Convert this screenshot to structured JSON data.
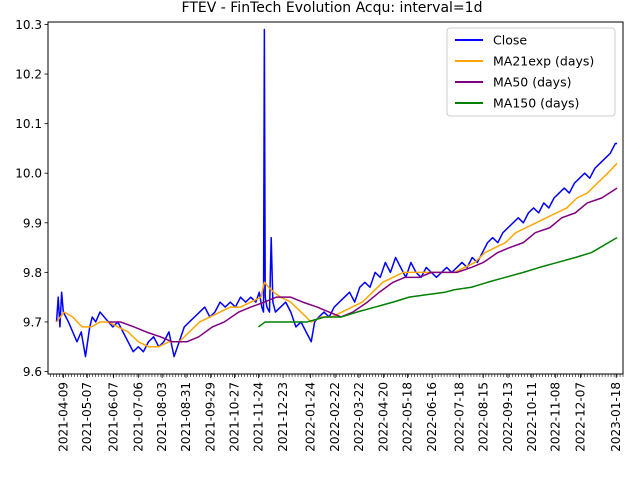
{
  "chart_data": {
    "type": "line",
    "title": "FTEV - FinTech Evolution Acqu: interval=1d",
    "xlabel": "",
    "ylabel": "",
    "x_range": [
      "2021-03-22",
      "2023-01-26"
    ],
    "ylim": [
      9.595,
      10.305
    ],
    "y_ticks": [
      9.6,
      9.7,
      9.8,
      9.9,
      10.0,
      10.1,
      10.2,
      10.3
    ],
    "y_tick_labels": [
      "9.6",
      "9.7",
      "9.8",
      "9.9",
      "10.0",
      "10.1",
      "10.2",
      "10.3"
    ],
    "x_ticks": [
      "2021-04-09",
      "2021-05-07",
      "2021-06-07",
      "2021-07-06",
      "2021-08-03",
      "2021-08-31",
      "2021-09-29",
      "2021-10-27",
      "2021-11-24",
      "2021-12-23",
      "2022-01-24",
      "2022-02-22",
      "2022-03-22",
      "2022-04-20",
      "2022-05-18",
      "2022-06-16",
      "2022-07-18",
      "2022-08-15",
      "2022-09-13",
      "2022-10-11",
      "2022-11-08",
      "2022-12-07",
      "2023-01-18"
    ],
    "x_tick_labels": [
      "2021-04-09",
      "2021-05-07",
      "2021-06-07",
      "2021-07-06",
      "2021-08-03",
      "2021-08-31",
      "2021-09-29",
      "2021-10-27",
      "2021-11-24",
      "2021-12-23",
      "2022-01-24",
      "2022-02-22",
      "2022-03-22",
      "2022-04-20",
      "2022-05-18",
      "2022-06-16",
      "2022-07-18",
      "2022-08-15",
      "2022-09-13",
      "2022-10-11",
      "2022-11-08",
      "2022-12-07",
      "2023-01-18"
    ],
    "grid": false,
    "legend": "top-right",
    "series": [
      {
        "name": "Close",
        "color": "#0000ff",
        "x": [
          "2021-04-01",
          "2021-04-03",
          "2021-04-05",
          "2021-04-07",
          "2021-04-09",
          "2021-04-12",
          "2021-04-15",
          "2021-04-20",
          "2021-04-25",
          "2021-04-30",
          "2021-05-05",
          "2021-05-10",
          "2021-05-13",
          "2021-05-17",
          "2021-05-22",
          "2021-05-27",
          "2021-06-01",
          "2021-06-06",
          "2021-06-12",
          "2021-06-18",
          "2021-06-24",
          "2021-06-30",
          "2021-07-06",
          "2021-07-12",
          "2021-07-18",
          "2021-07-24",
          "2021-07-30",
          "2021-08-05",
          "2021-08-11",
          "2021-08-17",
          "2021-08-23",
          "2021-08-29",
          "2021-09-04",
          "2021-09-10",
          "2021-09-16",
          "2021-09-22",
          "2021-09-28",
          "2021-10-04",
          "2021-10-10",
          "2021-10-16",
          "2021-10-22",
          "2021-10-28",
          "2021-11-03",
          "2021-11-09",
          "2021-11-15",
          "2021-11-21",
          "2021-11-25",
          "2021-11-28",
          "2021-11-30",
          "2021-12-01",
          "2021-12-02",
          "2021-12-04",
          "2021-12-07",
          "2021-12-09",
          "2021-12-11",
          "2021-12-14",
          "2021-12-20",
          "2021-12-26",
          "2022-01-01",
          "2022-01-07",
          "2022-01-13",
          "2022-01-19",
          "2022-01-25",
          "2022-01-29",
          "2022-02-03",
          "2022-02-09",
          "2022-02-15",
          "2022-02-21",
          "2022-02-27",
          "2022-03-05",
          "2022-03-11",
          "2022-03-17",
          "2022-03-23",
          "2022-03-29",
          "2022-04-04",
          "2022-04-10",
          "2022-04-16",
          "2022-04-22",
          "2022-04-28",
          "2022-05-04",
          "2022-05-10",
          "2022-05-16",
          "2022-05-22",
          "2022-05-28",
          "2022-06-03",
          "2022-06-09",
          "2022-06-15",
          "2022-06-21",
          "2022-06-27",
          "2022-07-03",
          "2022-07-09",
          "2022-07-15",
          "2022-07-21",
          "2022-07-27",
          "2022-08-02",
          "2022-08-08",
          "2022-08-14",
          "2022-08-20",
          "2022-08-26",
          "2022-09-01",
          "2022-09-07",
          "2022-09-13",
          "2022-09-19",
          "2022-09-25",
          "2022-10-01",
          "2022-10-07",
          "2022-10-13",
          "2022-10-19",
          "2022-10-25",
          "2022-10-31",
          "2022-11-06",
          "2022-11-12",
          "2022-11-18",
          "2022-11-24",
          "2022-11-30",
          "2022-12-06",
          "2022-12-12",
          "2022-12-18",
          "2022-12-24",
          "2022-12-30",
          "2023-01-05",
          "2023-01-11",
          "2023-01-17",
          "2023-01-19"
        ],
        "values": [
          9.7,
          9.75,
          9.69,
          9.76,
          9.72,
          9.71,
          9.7,
          9.68,
          9.66,
          9.68,
          9.63,
          9.69,
          9.71,
          9.7,
          9.72,
          9.71,
          9.7,
          9.69,
          9.7,
          9.68,
          9.66,
          9.64,
          9.65,
          9.64,
          9.66,
          9.67,
          9.65,
          9.66,
          9.68,
          9.63,
          9.66,
          9.69,
          9.7,
          9.71,
          9.72,
          9.73,
          9.71,
          9.72,
          9.74,
          9.73,
          9.74,
          9.73,
          9.75,
          9.74,
          9.75,
          9.74,
          9.76,
          9.73,
          9.72,
          10.29,
          9.75,
          9.73,
          9.72,
          9.87,
          9.74,
          9.72,
          9.73,
          9.74,
          9.72,
          9.69,
          9.7,
          9.68,
          9.66,
          9.7,
          9.71,
          9.72,
          9.71,
          9.73,
          9.74,
          9.75,
          9.76,
          9.74,
          9.77,
          9.78,
          9.77,
          9.8,
          9.79,
          9.82,
          9.8,
          9.83,
          9.81,
          9.79,
          9.82,
          9.8,
          9.79,
          9.81,
          9.8,
          9.79,
          9.8,
          9.81,
          9.8,
          9.81,
          9.82,
          9.81,
          9.83,
          9.82,
          9.84,
          9.86,
          9.87,
          9.86,
          9.88,
          9.89,
          9.9,
          9.91,
          9.9,
          9.92,
          9.93,
          9.92,
          9.94,
          9.93,
          9.95,
          9.96,
          9.97,
          9.96,
          9.98,
          9.99,
          10.0,
          9.99,
          10.01,
          10.02,
          10.03,
          10.04,
          10.06,
          10.06
        ]
      },
      {
        "name": "MA21exp (days)",
        "color": "#ffa500",
        "x": [
          "2021-04-01",
          "2021-04-10",
          "2021-04-20",
          "2021-05-01",
          "2021-05-12",
          "2021-05-22",
          "2021-06-01",
          "2021-06-12",
          "2021-06-24",
          "2021-07-06",
          "2021-07-18",
          "2021-07-30",
          "2021-08-11",
          "2021-08-23",
          "2021-09-04",
          "2021-09-16",
          "2021-09-28",
          "2021-10-10",
          "2021-10-22",
          "2021-11-03",
          "2021-11-15",
          "2021-11-27",
          "2021-12-01",
          "2021-12-06",
          "2021-12-12",
          "2021-12-20",
          "2022-01-01",
          "2022-01-13",
          "2022-01-25",
          "2022-02-06",
          "2022-02-18",
          "2022-03-02",
          "2022-03-14",
          "2022-03-26",
          "2022-04-07",
          "2022-04-19",
          "2022-05-01",
          "2022-05-13",
          "2022-05-25",
          "2022-06-06",
          "2022-06-18",
          "2022-06-30",
          "2022-07-12",
          "2022-07-24",
          "2022-08-05",
          "2022-08-17",
          "2022-08-29",
          "2022-09-10",
          "2022-09-22",
          "2022-10-04",
          "2022-10-16",
          "2022-10-28",
          "2022-11-09",
          "2022-11-21",
          "2022-12-03",
          "2022-12-15",
          "2022-12-27",
          "2023-01-08",
          "2023-01-19"
        ],
        "values": [
          9.7,
          9.72,
          9.71,
          9.69,
          9.69,
          9.7,
          9.7,
          9.69,
          9.68,
          9.66,
          9.65,
          9.65,
          9.66,
          9.66,
          9.68,
          9.7,
          9.71,
          9.72,
          9.73,
          9.73,
          9.74,
          9.75,
          9.78,
          9.77,
          9.76,
          9.75,
          9.74,
          9.72,
          9.7,
          9.71,
          9.71,
          9.72,
          9.73,
          9.74,
          9.76,
          9.78,
          9.79,
          9.8,
          9.8,
          9.8,
          9.8,
          9.8,
          9.8,
          9.81,
          9.82,
          9.84,
          9.85,
          9.86,
          9.88,
          9.89,
          9.9,
          9.91,
          9.92,
          9.93,
          9.95,
          9.96,
          9.98,
          10.0,
          10.02
        ]
      },
      {
        "name": "MA50 (days)",
        "color": "#800080",
        "x": [
          "2021-06-01",
          "2021-06-15",
          "2021-07-01",
          "2021-07-15",
          "2021-08-01",
          "2021-08-15",
          "2021-09-01",
          "2021-09-15",
          "2021-10-01",
          "2021-10-15",
          "2021-11-01",
          "2021-11-15",
          "2021-12-01",
          "2021-12-15",
          "2022-01-01",
          "2022-01-15",
          "2022-02-01",
          "2022-02-15",
          "2022-03-01",
          "2022-03-15",
          "2022-04-01",
          "2022-04-15",
          "2022-05-01",
          "2022-05-15",
          "2022-06-01",
          "2022-06-15",
          "2022-07-01",
          "2022-07-15",
          "2022-08-01",
          "2022-08-15",
          "2022-09-01",
          "2022-09-15",
          "2022-10-01",
          "2022-10-15",
          "2022-11-01",
          "2022-11-15",
          "2022-12-01",
          "2022-12-15",
          "2023-01-01",
          "2023-01-19"
        ],
        "values": [
          9.7,
          9.7,
          9.69,
          9.68,
          9.67,
          9.66,
          9.66,
          9.67,
          9.69,
          9.7,
          9.72,
          9.73,
          9.74,
          9.75,
          9.75,
          9.74,
          9.73,
          9.72,
          9.71,
          9.72,
          9.74,
          9.76,
          9.78,
          9.79,
          9.79,
          9.8,
          9.8,
          9.8,
          9.81,
          9.82,
          9.84,
          9.85,
          9.86,
          9.88,
          9.89,
          9.91,
          9.92,
          9.94,
          9.95,
          9.97
        ]
      },
      {
        "name": "MA150 (days)",
        "color": "#008000",
        "x": [
          "2021-11-24",
          "2021-12-02",
          "2021-12-15",
          "2022-01-01",
          "2022-01-20",
          "2022-02-10",
          "2022-03-01",
          "2022-03-20",
          "2022-04-10",
          "2022-05-01",
          "2022-05-20",
          "2022-06-10",
          "2022-07-01",
          "2022-07-12",
          "2022-08-01",
          "2022-08-20",
          "2022-09-10",
          "2022-10-01",
          "2022-10-20",
          "2022-11-10",
          "2022-12-01",
          "2022-12-20",
          "2023-01-19"
        ],
        "values": [
          9.69,
          9.7,
          9.7,
          9.7,
          9.7,
          9.71,
          9.71,
          9.72,
          9.73,
          9.74,
          9.75,
          9.755,
          9.76,
          9.765,
          9.77,
          9.78,
          9.79,
          9.8,
          9.81,
          9.82,
          9.83,
          9.84,
          9.87
        ]
      }
    ]
  }
}
